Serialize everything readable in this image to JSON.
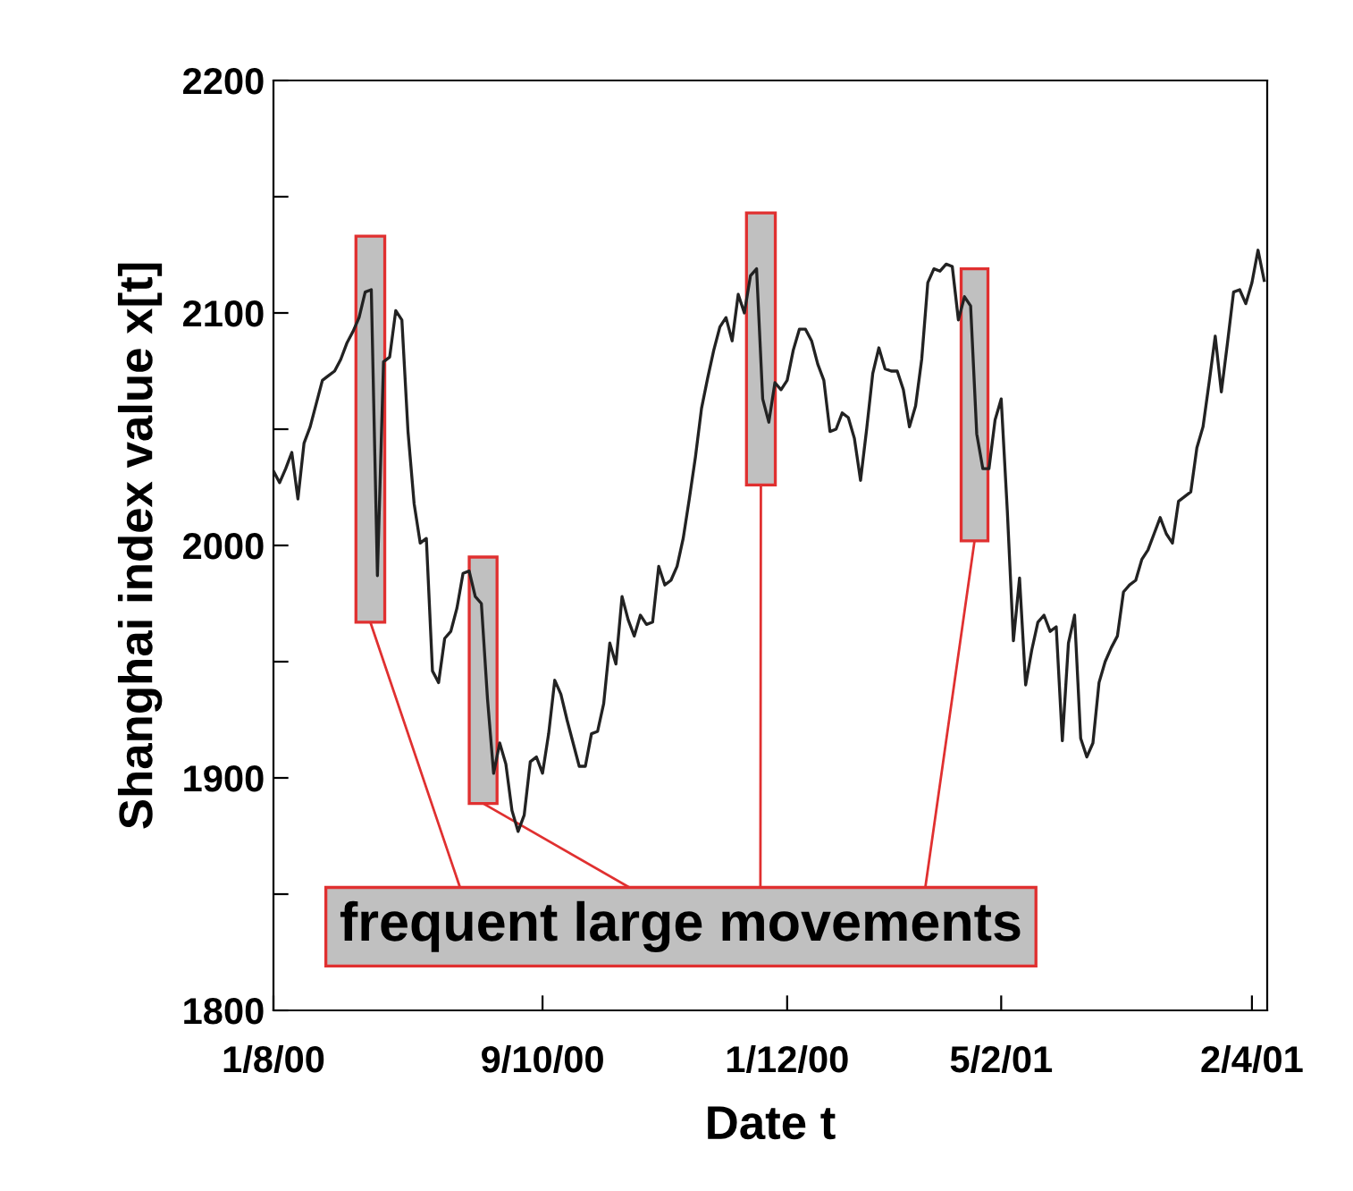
{
  "chart_data": {
    "type": "line",
    "xlabel": "Date t",
    "ylabel": "Shanghai index value x[t]",
    "annotations": [
      "frequent large movements"
    ],
    "categories": [
      "1/8/00",
      null,
      null,
      null,
      null,
      null,
      null,
      null,
      null,
      null,
      null,
      null,
      null,
      null,
      null,
      null,
      null,
      null,
      null,
      null,
      null,
      null,
      null,
      null,
      null,
      null,
      null,
      null,
      null,
      null,
      null,
      null,
      null,
      null,
      null,
      null,
      null,
      null,
      null,
      null,
      null,
      null,
      null,
      null,
      "9/10/00",
      null,
      null,
      null,
      null,
      null,
      null,
      null,
      null,
      null,
      null,
      null,
      null,
      null,
      null,
      null,
      null,
      null,
      null,
      null,
      null,
      null,
      null,
      null,
      null,
      null,
      null,
      null,
      null,
      null,
      null,
      null,
      null,
      null,
      null,
      null,
      null,
      null,
      null,
      null,
      "1/12/00",
      null,
      null,
      null,
      null,
      null,
      null,
      null,
      null,
      null,
      null,
      null,
      null,
      null,
      null,
      null,
      null,
      null,
      null,
      null,
      null,
      null,
      null,
      null,
      null,
      null,
      null,
      null,
      null,
      null,
      null,
      null,
      null,
      null,
      null,
      "5/2/01",
      null,
      null,
      null,
      null,
      null,
      null,
      null,
      null,
      null,
      null,
      null,
      null,
      null,
      null,
      null,
      null,
      null,
      null,
      null,
      null,
      null,
      null,
      null,
      null,
      null,
      null,
      null,
      null,
      null,
      null,
      null,
      null,
      null,
      null,
      null,
      null,
      null,
      null,
      null,
      null,
      "2/4/01",
      null,
      null
    ],
    "series": [
      {
        "color": "#222222",
        "values": [
          2032,
          2027,
          2033,
          2040,
          2020,
          2044,
          2051,
          2061,
          2071,
          2073,
          2075,
          2080,
          2087,
          2092,
          2098,
          2109,
          2110,
          1987,
          2079,
          2081,
          2101,
          2097,
          2049,
          2018,
          2001,
          2003,
          1946,
          1941,
          1960,
          1963,
          1973,
          1988,
          1989,
          1978,
          1975,
          1934,
          1902,
          1915,
          1906,
          1886,
          1877,
          1884,
          1907,
          1909,
          1902,
          1919,
          1942,
          1936,
          1925,
          1915,
          1905,
          1905,
          1919,
          1920,
          1932,
          1958,
          1949,
          1978,
          1968,
          1961,
          1970,
          1966,
          1967,
          1991,
          1983,
          1985,
          1991,
          2003,
          2020,
          2038,
          2059,
          2072,
          2084,
          2094,
          2098,
          2088,
          2108,
          2100,
          2116,
          2119,
          2063,
          2053,
          2070,
          2067,
          2071,
          2084,
          2093,
          2093,
          2088,
          2078,
          2071,
          2049,
          2050,
          2057,
          2055,
          2046,
          2028,
          2050,
          2074,
          2085,
          2076,
          2075,
          2075,
          2067,
          2051,
          2060,
          2080,
          2113,
          2119,
          2118,
          2121,
          2120,
          2097,
          2107,
          2103,
          2048,
          2033,
          2033,
          2054,
          2063,
          2015,
          1959,
          1986,
          1940,
          1955,
          1967,
          1970,
          1963,
          1965,
          1916,
          1958,
          1970,
          1917,
          1909,
          1915,
          1941,
          1950,
          1956,
          1961,
          1980,
          1983,
          1985,
          1994,
          1998,
          2005,
          2012,
          2005,
          2001,
          2019,
          2021,
          2023,
          2042,
          2051,
          2070,
          2090,
          2066,
          2087,
          2109,
          2110,
          2104,
          2113,
          2127,
          2114
        ]
      }
    ],
    "ylim": [
      1800,
      2200
    ],
    "yticks": [
      1800,
      {
        "value": 1850,
        "label": null
      },
      1900,
      {
        "value": 1950,
        "label": null
      },
      2000,
      {
        "value": 2050,
        "label": null
      },
      2100,
      {
        "value": 2150,
        "label": null
      },
      2200
    ],
    "grid": false,
    "legend": false
  }
}
